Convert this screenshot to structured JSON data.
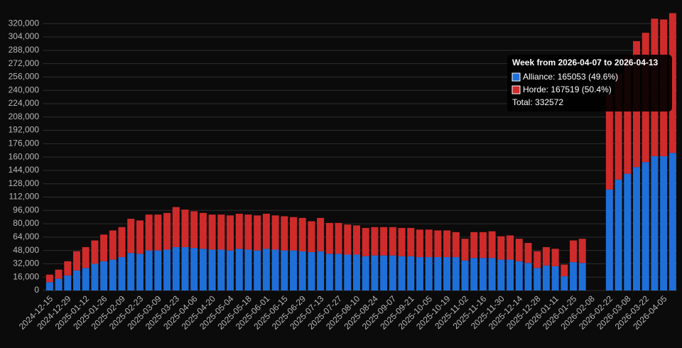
{
  "chart_data": {
    "type": "stacked_bar",
    "categories": [
      "2024-12-15",
      null,
      "2024-12-29",
      null,
      "2025-01-12",
      null,
      "2025-01-26",
      null,
      "2025-02-09",
      null,
      "2025-02-23",
      null,
      "2025-03-09",
      null,
      "2025-03-23",
      null,
      "2025-04-06",
      null,
      "2025-04-20",
      null,
      "2025-05-04",
      null,
      "2025-05-18",
      null,
      "2025-06-01",
      null,
      "2025-06-15",
      null,
      "2025-06-29",
      null,
      "2025-07-13",
      null,
      "2025-07-27",
      null,
      "2025-08-10",
      null,
      "2025-08-24",
      null,
      "2025-09-07",
      null,
      "2025-09-21",
      null,
      "2025-10-05",
      null,
      "2025-10-19",
      null,
      "2025-11-02",
      null,
      "2025-11-16",
      null,
      "2025-11-30",
      null,
      "2025-12-14",
      null,
      "2025-12-28",
      null,
      "2026-01-11",
      null,
      "2026-01-25",
      null,
      "2026-02-08",
      null,
      "2026-02-22",
      null,
      "2026-03-08",
      null,
      "2026-03-22",
      null,
      "2026-04-05",
      null
    ],
    "series": [
      {
        "name": "Alliance",
        "color": "#1f6fd8",
        "values": [
          10000,
          14000,
          18000,
          24000,
          27000,
          32000,
          35000,
          37000,
          40000,
          45000,
          44000,
          48000,
          48000,
          49000,
          52000,
          52000,
          51000,
          50000,
          49000,
          49000,
          48000,
          50000,
          49000,
          48000,
          50000,
          49000,
          48000,
          48000,
          47000,
          46000,
          47000,
          44000,
          44000,
          43000,
          43000,
          41000,
          42000,
          42000,
          42000,
          41000,
          41000,
          40000,
          40000,
          40000,
          40000,
          40000,
          36000,
          39000,
          39000,
          39000,
          37000,
          37000,
          35000,
          33000,
          27000,
          30000,
          29000,
          17000,
          34000,
          33000,
          null,
          null,
          121000,
          133000,
          140000,
          148000,
          154000,
          161000,
          161000,
          165053
        ]
      },
      {
        "name": "Horde",
        "color": "#cf2b2b",
        "values": [
          9000,
          11000,
          17000,
          23000,
          25000,
          28000,
          32000,
          35000,
          36000,
          41000,
          40000,
          43000,
          43000,
          44000,
          48000,
          45000,
          44000,
          43000,
          42000,
          42000,
          42000,
          42000,
          42000,
          42000,
          42000,
          41000,
          41000,
          40000,
          40000,
          37000,
          40000,
          37000,
          37000,
          36000,
          35000,
          34000,
          34000,
          34000,
          34000,
          34000,
          34000,
          33000,
          33000,
          32000,
          32000,
          30000,
          26000,
          31000,
          31000,
          32000,
          28000,
          29000,
          27000,
          24000,
          20000,
          22000,
          21000,
          14000,
          26000,
          29000,
          null,
          null,
          115000,
          127000,
          140000,
          151000,
          155000,
          165000,
          164000,
          167519
        ]
      }
    ],
    "ylim": [
      0,
      333000
    ],
    "yticks": [
      0,
      {
        "value": 16000,
        "label": "16,000"
      },
      {
        "value": 32000,
        "label": "32,000"
      },
      {
        "value": 48000,
        "label": "48,000"
      },
      {
        "value": 64000,
        "label": "64,000"
      },
      {
        "value": 80000,
        "label": "80,000"
      },
      {
        "value": 96000,
        "label": "96,000"
      },
      {
        "value": 112000,
        "label": "112,000"
      },
      {
        "value": 128000,
        "label": "128,000"
      },
      {
        "value": 144000,
        "label": "144,000"
      },
      {
        "value": 160000,
        "label": "160,000"
      },
      {
        "value": 176000,
        "label": "176,000"
      },
      {
        "value": 192000,
        "label": "192,000"
      },
      {
        "value": 208000,
        "label": "208,000"
      },
      {
        "value": 224000,
        "label": "224,000"
      },
      {
        "value": 240000,
        "label": "240,000"
      },
      {
        "value": 256000,
        "label": "256,000"
      },
      {
        "value": 272000,
        "label": "272,000"
      },
      {
        "value": 288000,
        "label": "288,000"
      },
      {
        "value": 304000,
        "label": "304,000"
      },
      {
        "value": 320000,
        "label": "320,000"
      }
    ],
    "grid": true,
    "tooltip": {
      "title": "Week from 2026-04-07 to 2026-04-13",
      "lines": [
        "Alliance: 165053 (49.6%)",
        "Horde: 167519 (50.4%)"
      ],
      "total": "Total: 332572"
    }
  }
}
